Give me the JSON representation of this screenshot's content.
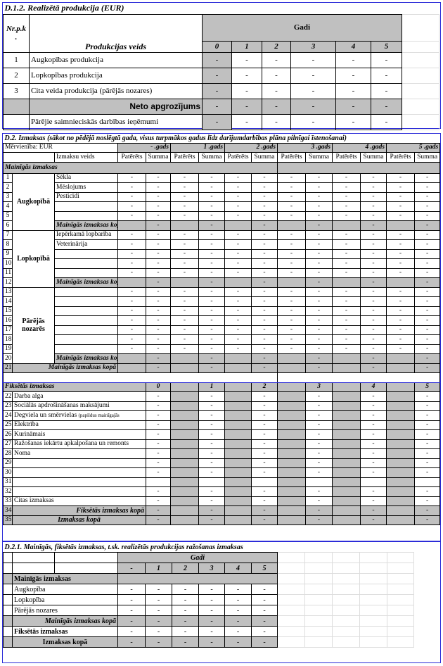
{
  "s1": {
    "title": "D.1.2. Realizētā produkcija  (EUR)",
    "nr_header": "Nr.p.k .",
    "col_header": "Produkcijas veids",
    "gadi": "Gadi",
    "years": [
      "0",
      "1",
      "2",
      "3",
      "4",
      "5"
    ],
    "rows": [
      {
        "nr": "1",
        "label": "Augkopības produkcija",
        "values": [
          "-",
          "-",
          "-",
          "-",
          "-",
          "-"
        ]
      },
      {
        "nr": "2",
        "label": "Lopkopības produkcija",
        "values": [
          "-",
          "-",
          "-",
          "-",
          "-",
          "-"
        ]
      },
      {
        "nr": "3",
        "label": "Cita veida produkcija (pārējās nozares)",
        "values": [
          "-",
          "-",
          "-",
          "-",
          "-",
          "-"
        ]
      },
      {
        "nr": "",
        "label": "Neto apgrozījums",
        "total": true,
        "values": [
          "-",
          "-",
          "-",
          "-",
          "-",
          "-"
        ]
      },
      {
        "nr": "",
        "label": "Pārējie saimnieciskās darbības ieņēmumi",
        "values": [
          "-",
          "-",
          "-",
          "-",
          "-",
          "-"
        ]
      }
    ]
  },
  "s2": {
    "title": "D.2. Izmaksas (sākot no pēdējā noslēgtā gada, visus turpmākos gadus līdz darījumdarbības plāna pilnīgai īstenošanai)",
    "unit": "Mērvienība: EUR",
    "year_headers": [
      "- .gads",
      "1 .gads",
      "2 .gads",
      "3 .gads",
      "4 .gads",
      "5 .gads"
    ],
    "sub_headers": [
      "Patērēts",
      "Summa"
    ],
    "name_header": "Izmaksu veids",
    "variable_title": "Mainīgās izmaksas",
    "groups": [
      {
        "name": "Augkopībā",
        "rows": [
          {
            "nr": "1",
            "label": "Sēkla"
          },
          {
            "nr": "2",
            "label": "Mēslojums"
          },
          {
            "nr": "3",
            "label": "Pesticīdi"
          },
          {
            "nr": "4",
            "label": ""
          },
          {
            "nr": "5",
            "label": ""
          }
        ],
        "subtotal": {
          "nr": "6",
          "label": "Mainīgās izmaksas kopā,"
        }
      },
      {
        "name": "Lopkopībā",
        "rows": [
          {
            "nr": "7",
            "label": "Iepērkamā lopbarība"
          },
          {
            "nr": "8",
            "label": "Veterinārija"
          },
          {
            "nr": "9",
            "label": ""
          },
          {
            "nr": "10",
            "label": ""
          },
          {
            "nr": "11",
            "label": ""
          }
        ],
        "subtotal": {
          "nr": "12",
          "label": "Mainīgās izmaksas kopā,"
        }
      },
      {
        "name": "Pārējās nozarēs",
        "rows": [
          {
            "nr": "13",
            "label": ""
          },
          {
            "nr": "14",
            "label": ""
          },
          {
            "nr": "15",
            "label": ""
          },
          {
            "nr": "16",
            "label": ""
          },
          {
            "nr": "17",
            "label": ""
          },
          {
            "nr": "18",
            "label": ""
          },
          {
            "nr": "19",
            "label": ""
          }
        ],
        "subtotal": {
          "nr": "20",
          "label": "Mainīgās izmaksas kopā,"
        }
      }
    ],
    "row_value": "-",
    "variable_total": {
      "nr": "21",
      "label": "Mainīgās izmaksas kopā"
    },
    "fixed": {
      "title": "Fiksētās izmaksas",
      "years": [
        "0",
        "1",
        "2",
        "3",
        "4",
        "5"
      ],
      "rows": [
        {
          "nr": "22",
          "label": "Darba alga",
          "filled": true
        },
        {
          "nr": "23",
          "label": "Sociālās apdrošināšanas maksājumi",
          "filled": true
        },
        {
          "nr": "24",
          "label": "Degviela un smērvielas",
          "note": "(papildus mainīgajās",
          "filled": true
        },
        {
          "nr": "25",
          "label": "Elektrība",
          "filled": true
        },
        {
          "nr": "26",
          "label": "Kurināmais",
          "filled": true
        },
        {
          "nr": "27",
          "label": "Ražošanas iekārtu apkalpošana un remonts",
          "filled": true
        },
        {
          "nr": "28",
          "label": "Noma",
          "filled": true
        },
        {
          "nr": "29",
          "label": "",
          "filled": true
        },
        {
          "nr": "30",
          "label": "",
          "filled": true
        },
        {
          "nr": "31",
          "label": "",
          "filled": false
        },
        {
          "nr": "32",
          "label": "",
          "filled": true
        },
        {
          "nr": "33",
          "label": "Citas izmaksas",
          "filled": true
        }
      ],
      "subtotal": {
        "nr": "34",
        "label": "Fiksētās izmaksas kopā"
      },
      "total": {
        "nr": "35",
        "label": "Izmaksas kopā"
      }
    }
  },
  "s3": {
    "title": "D.2.1. Mainīgās, fiksētās izmaksas, t.sk. realizētās produkcijas ražošanas izmaksas",
    "gadi": "Gadi",
    "years": [
      "-",
      "1",
      "2",
      "3",
      "4",
      "5"
    ],
    "variable_title": "Mainīgās izmaksas",
    "rows": [
      {
        "label": "Augkopība",
        "values": [
          "-",
          "-",
          "-",
          "-",
          "-",
          "-"
        ]
      },
      {
        "label": "Lopkopība",
        "values": [
          "-",
          "-",
          "-",
          "-",
          "-",
          "-"
        ]
      },
      {
        "label": "Pārējās nozares",
        "values": [
          "-",
          "-",
          "-",
          "-",
          "-",
          "-"
        ]
      }
    ],
    "variable_total": {
      "label": "Mainīgās izmaksas kopā",
      "values": [
        "-",
        "-",
        "-",
        "-",
        "-",
        "-"
      ]
    },
    "fixed": {
      "label": "Fiksētās izmaksas",
      "values": [
        "-",
        "-",
        "-",
        "-",
        "-",
        "-"
      ]
    },
    "total": {
      "label": "Izmaksas kopā",
      "values": [
        "-",
        "-",
        "-",
        "-",
        "-",
        "-"
      ]
    }
  },
  "colors": {
    "gray": "#c0c0c0",
    "frame": "#2b2bd8"
  }
}
